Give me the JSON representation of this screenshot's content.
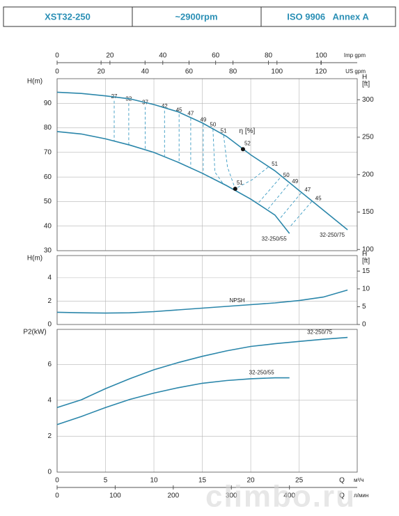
{
  "header": {
    "cells": [
      "XST32-250",
      "~2900rpm",
      "ISO 9906   Annex A"
    ]
  },
  "watermark": "climbo.ru",
  "chart_data": [
    {
      "type": "line",
      "ylabel": "H(m)",
      "y2label": [
        "H",
        "[ft]"
      ],
      "ylim": [
        30,
        100
      ],
      "yticks": [
        30,
        40,
        50,
        60,
        70,
        80,
        90
      ],
      "y2lim": [
        98.4,
        328.1
      ],
      "y2ticks": [
        100,
        150,
        200,
        250,
        300
      ],
      "grid": true,
      "top_axes": [
        {
          "label": "Imp gpm",
          "xlim": [
            0,
            113.6
          ],
          "xticks": [
            0,
            20,
            40,
            60,
            80,
            100
          ]
        },
        {
          "label": "US gpm",
          "xlim": [
            0,
            136.5
          ],
          "xticks": [
            0,
            20,
            40,
            60,
            80,
            100,
            120
          ]
        }
      ],
      "series": [
        {
          "name": "32-250/75",
          "color": "#2a86aa",
          "x": [
            0,
            2.5,
            5,
            7.5,
            10,
            12.5,
            15,
            17.5,
            20,
            22.5,
            25,
            27.5,
            30
          ],
          "values": [
            94.5,
            94,
            93,
            91.8,
            89.5,
            86.5,
            82,
            76.5,
            69,
            62.5,
            54.5,
            46.5,
            38.5
          ]
        },
        {
          "name": "32-250/55",
          "color": "#2a86aa",
          "x": [
            0,
            2.5,
            5,
            7.5,
            10,
            12.5,
            15,
            17.5,
            20,
            22.5,
            24
          ],
          "values": [
            78.5,
            77.5,
            75.5,
            73,
            70,
            66,
            61.5,
            56.5,
            51,
            44.5,
            37
          ]
        }
      ],
      "efficiency_lines": [
        {
          "label": "27",
          "x": [
            5.9,
            5.9
          ],
          "values": [
            91,
            74.5
          ]
        },
        {
          "label": "32",
          "x": [
            7.4,
            7.4
          ],
          "values": [
            90,
            73
          ]
        },
        {
          "label": "37",
          "x": [
            9.1,
            9.1
          ],
          "values": [
            88.5,
            71
          ]
        },
        {
          "label": "42",
          "x": [
            11.1,
            11.1
          ],
          "values": [
            87,
            68.5
          ]
        },
        {
          "label": "45",
          "x": [
            12.6,
            12.6
          ],
          "values": [
            85.5,
            66
          ]
        },
        {
          "label": "47",
          "x": [
            13.8,
            13.8
          ],
          "values": [
            84,
            64
          ]
        },
        {
          "label": "49",
          "x": [
            15.1,
            15.1
          ],
          "values": [
            81.5,
            61
          ]
        },
        {
          "label": "50",
          "x": [
            16.1,
            16.3,
            17.2
          ],
          "values": [
            79.5,
            62,
            57
          ]
        },
        {
          "label": "51",
          "x": [
            17.2,
            17.6,
            18.4
          ],
          "values": [
            77,
            64,
            55.2
          ]
        },
        {
          "label": "51",
          "x": [
            21.8,
            20.2,
            18.4
          ],
          "values": [
            64,
            59,
            55.2
          ]
        },
        {
          "label": "50",
          "x": [
            23,
            20.8
          ],
          "values": [
            59.5,
            49.5
          ]
        },
        {
          "label": "49",
          "x": [
            23.9,
            21.8
          ],
          "values": [
            57,
            47
          ]
        },
        {
          "label": "47",
          "x": [
            25.2,
            23
          ],
          "values": [
            53.5,
            43
          ]
        },
        {
          "label": "45",
          "x": [
            26.3,
            24
          ],
          "values": [
            50,
            39.5
          ]
        }
      ],
      "points": [
        {
          "label": "52",
          "x": 19.2,
          "y": 71.3
        },
        {
          "label": "51",
          "x": 18.4,
          "y": 55.2
        }
      ],
      "annotation": "η [%]"
    },
    {
      "type": "line",
      "ylabel": "H(m)",
      "y2label": [
        "H",
        "[ft]"
      ],
      "ylim": [
        0,
        5.9
      ],
      "yticks": [
        0,
        2,
        4
      ],
      "y2lim": [
        0,
        19.36
      ],
      "y2ticks": [
        0,
        5,
        10,
        15
      ],
      "grid": true,
      "series": [
        {
          "name": "NPSH",
          "color": "#2a86aa",
          "x": [
            0,
            2.5,
            5,
            7.5,
            10,
            12.5,
            15,
            17.5,
            20,
            22.5,
            25,
            27.5,
            30
          ],
          "values": [
            1.05,
            1.0,
            0.98,
            1.0,
            1.1,
            1.25,
            1.4,
            1.55,
            1.7,
            1.85,
            2.05,
            2.35,
            2.95
          ]
        }
      ]
    },
    {
      "type": "line",
      "ylabel": "P2(kW)",
      "ylim": [
        0,
        7.95
      ],
      "yticks": [
        0,
        2,
        4,
        6
      ],
      "xlim": [
        0,
        31
      ],
      "xticks": [
        0,
        5,
        10,
        15,
        20,
        25
      ],
      "xlabel": "Q",
      "xunit": "м³/ч",
      "x2": {
        "label": "Q",
        "unit": "л/мин",
        "xlim": [
          0,
          516.7
        ],
        "xticks": [
          0,
          100,
          200,
          300,
          400
        ]
      },
      "grid": true,
      "series": [
        {
          "name": "32-250/75",
          "color": "#2a86aa",
          "x": [
            0,
            2.5,
            5,
            7.5,
            10,
            12.5,
            15,
            17.5,
            20,
            22.5,
            25,
            27.5,
            30
          ],
          "values": [
            3.6,
            4.03,
            4.65,
            5.2,
            5.7,
            6.1,
            6.45,
            6.75,
            7.0,
            7.15,
            7.28,
            7.4,
            7.5
          ]
        },
        {
          "name": "32-250/55",
          "color": "#2a86aa",
          "x": [
            0,
            2.5,
            5,
            7.5,
            10,
            12.5,
            15,
            17.5,
            20,
            22.5,
            24
          ],
          "values": [
            2.65,
            3.1,
            3.6,
            4.05,
            4.4,
            4.7,
            4.95,
            5.1,
            5.2,
            5.25,
            5.25
          ]
        }
      ]
    }
  ]
}
